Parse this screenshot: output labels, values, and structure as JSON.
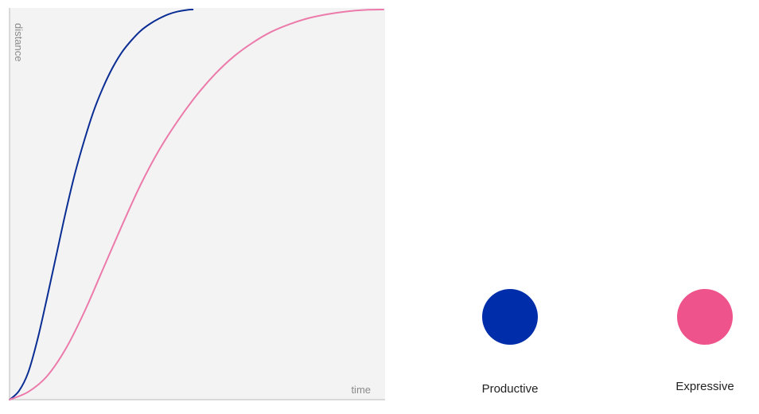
{
  "chart_data": {
    "type": "line",
    "xlabel": "time",
    "ylabel": "distance",
    "xlim": [
      0,
      1
    ],
    "ylim": [
      0,
      1
    ],
    "grid": false,
    "series": [
      {
        "name": "Productive",
        "color": "#0a2d94",
        "x": [
          0,
          0.025,
          0.05,
          0.075,
          0.1,
          0.125,
          0.15,
          0.175,
          0.2,
          0.225,
          0.25,
          0.275,
          0.3,
          0.325,
          0.35,
          0.375,
          0.4,
          0.425,
          0.45,
          0.475,
          0.49
        ],
        "y": [
          0,
          0.022,
          0.07,
          0.155,
          0.26,
          0.37,
          0.48,
          0.58,
          0.665,
          0.74,
          0.8,
          0.85,
          0.89,
          0.92,
          0.945,
          0.963,
          0.977,
          0.988,
          0.995,
          0.999,
          1.0
        ]
      },
      {
        "name": "Expressive",
        "color": "#ec7aab",
        "x": [
          0,
          0.05,
          0.1,
          0.15,
          0.2,
          0.25,
          0.3,
          0.35,
          0.4,
          0.45,
          0.5,
          0.55,
          0.6,
          0.65,
          0.7,
          0.75,
          0.8,
          0.85,
          0.9,
          0.95,
          1.0
        ],
        "y": [
          0,
          0.02,
          0.06,
          0.13,
          0.225,
          0.335,
          0.445,
          0.55,
          0.64,
          0.715,
          0.78,
          0.835,
          0.88,
          0.915,
          0.943,
          0.963,
          0.978,
          0.988,
          0.995,
          0.999,
          1.0
        ]
      }
    ]
  },
  "demos": [
    {
      "label": "Productive",
      "color": "#002daa"
    },
    {
      "label": "Expressive",
      "color": "#ee538b"
    }
  ]
}
